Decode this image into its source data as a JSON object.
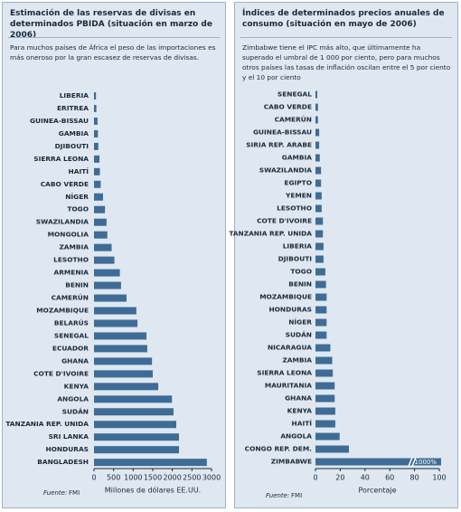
{
  "chart_data": [
    {
      "type": "bar",
      "orientation": "horizontal",
      "title": "Estimación de las reservas de divisas en determinados PBIDA (situación en marzo de 2006)",
      "subtitle": "Para muchos países de África el peso de las importaciones es más oneroso por la gran escasez de reservas de divisas.",
      "categories": [
        "LIBERIA",
        "ERITREA",
        "GUINEA-BISSAU",
        "GAMBIA",
        "DJIBOUTI",
        "SIERRA LEONA",
        "HAITÍ",
        "CABO VERDE",
        "NÍGER",
        "TOGO",
        "SWAZILANDIA",
        "MONGOLIA",
        "ZAMBIA",
        "LESOTHO",
        "ARMENIA",
        "BENIN",
        "CAMERÚN",
        "MOZAMBIQUE",
        "BELARÚS",
        "SENEGAL",
        "ECUADOR",
        "GHANA",
        "COTE D'IVOIRE",
        "KENYA",
        "ANGOLA",
        "SUDÁN",
        "TANZANIA REP. UNIDA",
        "SRI LANKA",
        "HONDURAS",
        "BANGLADESH"
      ],
      "values": [
        50,
        60,
        90,
        100,
        110,
        140,
        150,
        170,
        230,
        280,
        320,
        340,
        450,
        520,
        660,
        690,
        830,
        1080,
        1110,
        1340,
        1360,
        1480,
        1500,
        1640,
        1990,
        2030,
        2100,
        2170,
        2170,
        2880
      ],
      "color": "#3e6c97",
      "xlim": [
        0,
        3000
      ],
      "xticks": [
        0,
        500,
        1000,
        1500,
        2000,
        2500,
        3000
      ],
      "xlabel": "Millones de dólares EE.UU.",
      "source_label": "Fuente:",
      "source": "FMI"
    },
    {
      "type": "bar",
      "orientation": "horizontal",
      "title": "Índices de determinados precios anuales de consumo (situación en mayo de 2006)",
      "subtitle": "Zimbabwe tiene el IPC más alto, que últimamente ha superado el umbral de 1 000 por ciento, pero para muchos otros países las tasas de inflación oscilan entre el 5 por ciento y el 10 por ciento",
      "categories": [
        "SENEGAL",
        "CABO VERDE",
        "CAMERÚN",
        "GUINEA-BISSAU",
        "SIRIA REP. ARABE",
        "GAMBIA",
        "SWAZILANDIA",
        "EGIPTO",
        "YEMEN",
        "LESOTHO",
        "COTE D'IVOIRE",
        "TANZANIA REP. UNIDA",
        "LIBERIA",
        "DJIBOUTI",
        "TOGO",
        "BENIN",
        "MOZAMBIQUE",
        "HONDURAS",
        "NÍGER",
        "SUDÁN",
        "NICARAGUA",
        "ZAMBIA",
        "SIERRA LEONA",
        "MAURITANIA",
        "GHANA",
        "KENYA",
        "HAITÍ",
        "ANGOLA",
        "CONGO REP. DEM.",
        "ZIMBABWE"
      ],
      "values": [
        1.5,
        2,
        2,
        3,
        3,
        3.5,
        4.5,
        4.5,
        5,
        5,
        6,
        6,
        6.5,
        6.5,
        8,
        8.5,
        9,
        9,
        9,
        9,
        12,
        13.5,
        14,
        15.5,
        15.5,
        16,
        16,
        19.5,
        27,
        1000
      ],
      "value_labels": [
        null,
        null,
        null,
        null,
        null,
        null,
        null,
        null,
        null,
        null,
        null,
        null,
        null,
        null,
        null,
        null,
        null,
        null,
        null,
        null,
        null,
        null,
        null,
        null,
        null,
        null,
        null,
        null,
        null,
        "1000%"
      ],
      "color": "#3e6c97",
      "xlim": [
        0,
        100
      ],
      "xticks": [
        0,
        20,
        40,
        60,
        80,
        100
      ],
      "xlabel": "Porcentaje",
      "source_label": "Fuente:",
      "source": "FMI"
    }
  ]
}
